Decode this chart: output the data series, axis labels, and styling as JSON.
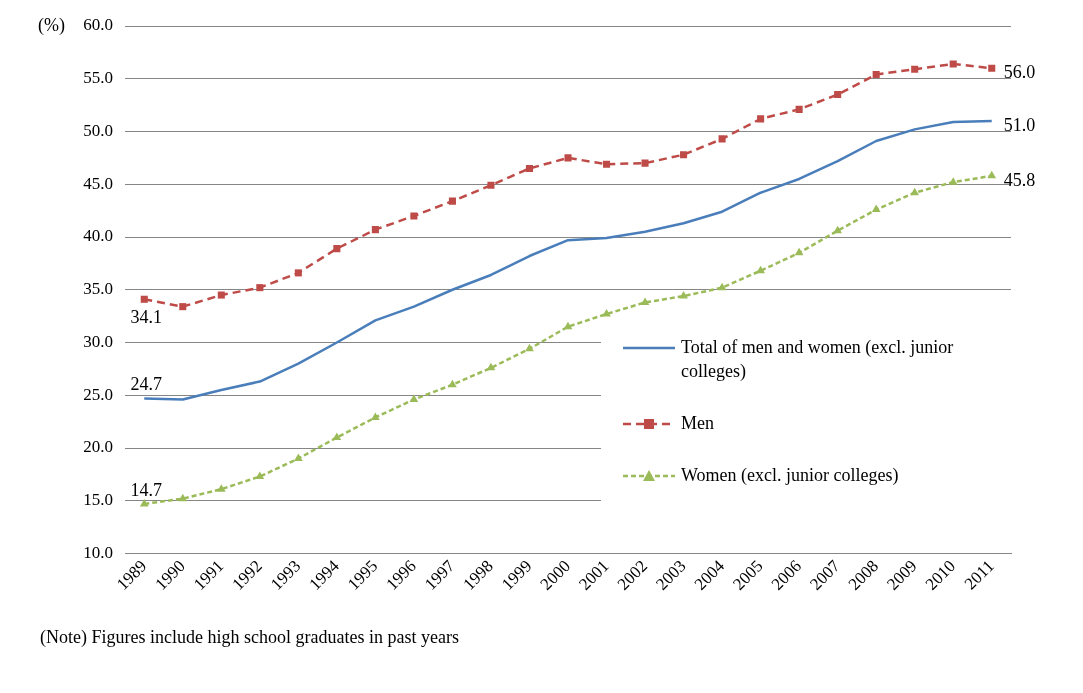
{
  "chart_data": {
    "type": "line",
    "ylabel": "(%)",
    "categories": [
      "1989",
      "1990",
      "1991",
      "1992",
      "1993",
      "1994",
      "1995",
      "1996",
      "1997",
      "1998",
      "1999",
      "2000",
      "2001",
      "2002",
      "2003",
      "2004",
      "2005",
      "2006",
      "2007",
      "2008",
      "2009",
      "2010",
      "2011"
    ],
    "series": [
      {
        "name": "Total of men and women (excl. junior colleges)",
        "color": "#4a7ebb",
        "line_style": "solid",
        "marker": "none",
        "values": [
          24.7,
          24.6,
          25.5,
          26.3,
          28.0,
          30.0,
          32.1,
          33.4,
          35.0,
          36.4,
          38.2,
          39.7,
          39.9,
          40.5,
          41.3,
          42.4,
          44.2,
          45.5,
          47.2,
          49.1,
          50.2,
          50.9,
          51.0
        ],
        "value_labels": [
          "24.7",
          null,
          null,
          null,
          null,
          null,
          null,
          null,
          null,
          null,
          null,
          null,
          null,
          null,
          null,
          null,
          null,
          null,
          null,
          null,
          null,
          null,
          "51.0"
        ]
      },
      {
        "name": "Men",
        "color": "#be4b48",
        "line_style": "dashed",
        "marker": "square",
        "values": [
          34.1,
          33.4,
          34.5,
          35.2,
          36.6,
          38.9,
          40.7,
          42.0,
          43.4,
          44.9,
          46.5,
          47.5,
          46.9,
          47.0,
          47.8,
          49.3,
          51.2,
          52.1,
          53.5,
          55.4,
          55.9,
          56.4,
          56.0
        ],
        "value_labels": [
          "34.1",
          null,
          null,
          null,
          null,
          null,
          null,
          null,
          null,
          null,
          null,
          null,
          null,
          null,
          null,
          null,
          null,
          null,
          null,
          null,
          null,
          null,
          "56.0"
        ]
      },
      {
        "name": "Women (excl. junior colleges)",
        "color": "#9bbb59",
        "line_style": "dotted",
        "marker": "triangle",
        "values": [
          14.7,
          15.2,
          16.1,
          17.3,
          19.0,
          21.0,
          22.9,
          24.6,
          26.0,
          27.6,
          29.4,
          31.5,
          32.7,
          33.8,
          34.4,
          35.2,
          36.8,
          38.5,
          40.6,
          42.6,
          44.2,
          45.2,
          45.8
        ],
        "value_labels": [
          "14.7",
          null,
          null,
          null,
          null,
          null,
          null,
          null,
          null,
          null,
          null,
          null,
          null,
          null,
          null,
          null,
          null,
          null,
          null,
          null,
          null,
          null,
          "45.8"
        ]
      }
    ],
    "ylim": [
      10,
      60
    ],
    "yticks": [
      {
        "value": 10,
        "label": "10.0"
      },
      {
        "value": 15,
        "label": "15.0"
      },
      {
        "value": 20,
        "label": "20.0"
      },
      {
        "value": 25,
        "label": "25.0"
      },
      {
        "value": 30,
        "label": "30.0"
      },
      {
        "value": 35,
        "label": "35.0"
      },
      {
        "value": 40,
        "label": "40.0"
      },
      {
        "value": 45,
        "label": "45.0"
      },
      {
        "value": 50,
        "label": "50.0"
      },
      {
        "value": 55,
        "label": "55.0"
      },
      {
        "value": 60,
        "label": "60.0"
      }
    ],
    "grid": "y",
    "legend": "right",
    "annotations": [
      "(Note) Figures include high school graduates in past years"
    ]
  }
}
